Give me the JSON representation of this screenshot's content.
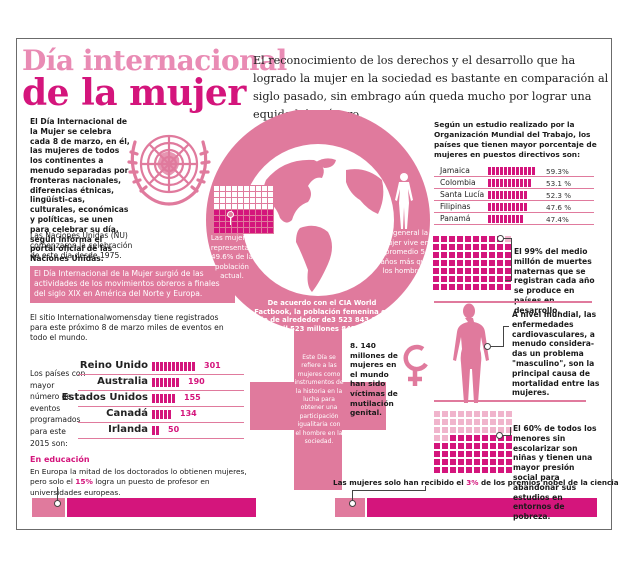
{
  "header": {
    "title_line1": "Día internacional",
    "title_line2": "de la mujer",
    "lead": "El reconocimiento de los derechos y el desarrollo que ha logrado la mujer en la sociedad es bastante en comparación al siglo pasado, sin embrago aún queda mucho por lograr una equidad de género."
  },
  "left": {
    "intro": "El Día Internacional de la Mujer se celebra cada 8 de marzo, en él, las mujeres de todos los continentes a menudo separadas por fronteras nacionales, diferencias étnicas, lingüísti-cas, culturales, económicas y políticas, se unen para celebrar su día, según informa el portal oficial de las Naciones Unidas.",
    "nu_text": "Las Naciones Unidas (NU) comenzaron la celebración de este día desde 1975.",
    "origin_box": "El Día Internacional de la Mujer surgió de las actividades de los movimientos obreros a finales del siglo XIX en América del Norte y Europa.",
    "events_text": "El sitio Internationalwomensday tiene registrados para este próximo 8 de marzo miles de eventos en todo el mundo.",
    "countries_caption": "Los países con mayor número de eventos programados para este 2015 son:",
    "education_title": "En educación",
    "education_text_a": "En Europa la mitad de los doctorados lo obtienen mujeres, pero solo el ",
    "education_highlight": "15%",
    "education_text_b": " logra un puesto de profesor en universidades europeas."
  },
  "center": {
    "population_text": "Las mujeres representan 49.6% de la población actual.",
    "lifespan_text": "En general la mujer vive en promedio 5 años más que los hombres.",
    "cia_text": "De acuerdo con el CIA World Factbook, la población femenina es de de alrededor de3 523 843 881",
    "cia_text2": "(Tres mil 523 millones 843 mil 881)",
    "history_text": "Este Día se refiere a las mujeres como instrumentos de la historia en la lucha para obtener una participación igualitaria con el hombre en la sociedad.",
    "mutilation_text": "8. 140 millones de mujeres en el mundo han sido víctimas de mutilación genital.",
    "nobel_text_a": "Las mujeres solo han recibido el ",
    "nobel_highlight": "3%",
    "nobel_text_b": " de los premios nobel de la ciencia"
  },
  "right": {
    "oit_intro": "Según un estudio realizado por la Organización Mundial del Trabajo, los países que tienen mayor porcentaje de mujeres en puestos directivos son:",
    "maternal_text": "El 99% del medio millón de muertes maternas que se registran cada año se produce en países en desarrollo.",
    "cardio_text": "A nivel mundial, las enfermedades cardiovasculares, a menudo considera-das un problema \"masculino\", son la principal causa de mortalidad entre las mujeres.",
    "school_text": "El 60% de todos los menores sin escolarizar son niñas y tienen una mayor presión social para abandonar sus estudios en entornos de pobreza."
  },
  "colors": {
    "magenta": "#d4157c",
    "pink": "#e07a9d",
    "light_pink": "#e98bb4",
    "pale_pink": "#f0b4cc"
  },
  "chart_data": [
    {
      "type": "bar",
      "title": "Países con mayor número de eventos programados para 2015",
      "categories": [
        "Reino Unido",
        "Australia",
        "Estados Unidos",
        "Canadá",
        "Irlanda"
      ],
      "values": [
        301,
        190,
        155,
        134,
        50
      ],
      "labels": [
        "301",
        "190",
        "155",
        "134",
        "50"
      ]
    },
    {
      "type": "bar",
      "title": "Países con mayor porcentaje de mujeres en puestos directivos",
      "categories": [
        "Jamaica",
        "Colombia",
        "Santa Lucía",
        "Filipinas",
        "Panamá"
      ],
      "values": [
        59.3,
        53.1,
        52.3,
        47.6,
        47.4
      ],
      "labels": [
        "59.3%",
        "53.1 %",
        "52.3 %",
        "47.6 %",
        "47.4%"
      ]
    }
  ]
}
